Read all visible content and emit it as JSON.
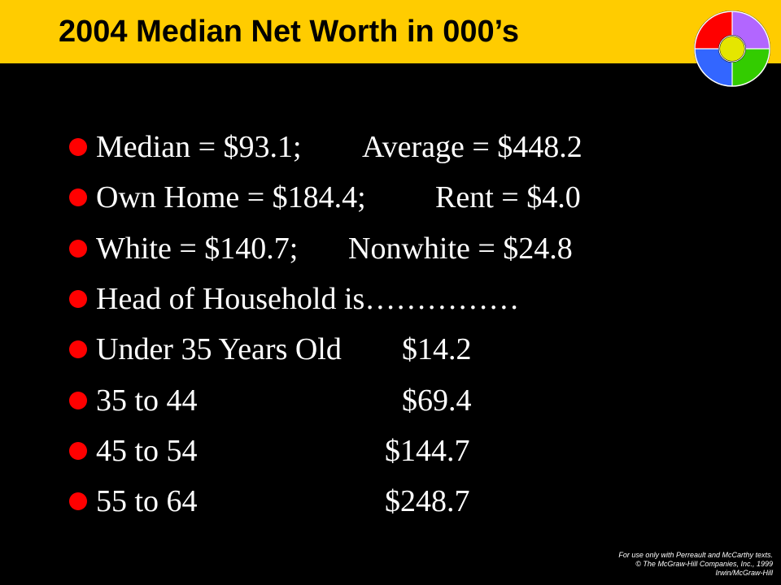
{
  "slide": {
    "title": "2004 Median Net Worth in 000’s",
    "logo_colors": {
      "top_left": "#FF0000",
      "top_right": "#B266FF",
      "bottom_left": "#3366FF",
      "bottom_right": "#33CC00",
      "center": "#E5E600"
    },
    "colors": {
      "title_bar": "#FFCC00",
      "background": "#000000",
      "bullet": "#FF0000",
      "text": "#FFFFFF"
    },
    "bullets": [
      {
        "a": "Median = $93.1;",
        "b": "Average = $448.2"
      },
      {
        "a": "Own Home = $184.4;",
        "b": "Rent = $4.0"
      },
      {
        "a": "White = $140.7;",
        "b": "Nonwhite = $24.8"
      },
      {
        "a": "Head of Household is……………",
        "b": ""
      },
      {
        "a": "Under 35 Years Old",
        "b": "$14.2"
      },
      {
        "a": "35 to 44",
        "b": "$69.4"
      },
      {
        "a": "45 to 54",
        "b": "$144.7"
      },
      {
        "a": "55 to 64",
        "b": "$248.7"
      }
    ]
  },
  "footer": {
    "line1": "For use only with Perreault and McCarthy texts.",
    "line2": "© The McGraw-Hill Companies, Inc., 1999",
    "line3": "Irwin/McGraw-Hill"
  }
}
